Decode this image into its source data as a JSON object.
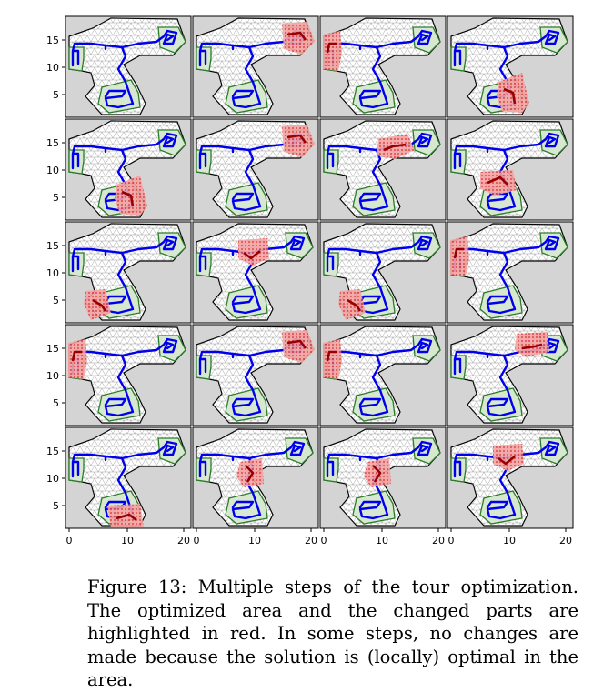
{
  "figure": {
    "grid": {
      "rows": 5,
      "cols": 4
    },
    "y_tick_labels": [
      "15",
      "10",
      "5"
    ],
    "x_tick_labels": [
      "0",
      "10",
      "20"
    ],
    "panels": [
      {
        "highlight": "none"
      },
      {
        "highlight": "top-right-component"
      },
      {
        "highlight": "left-component"
      },
      {
        "highlight": "bottom-component"
      },
      {
        "highlight": "bottom-component"
      },
      {
        "highlight": "top-right-component"
      },
      {
        "highlight": "upper-middle"
      },
      {
        "highlight": "bottom-middle"
      },
      {
        "highlight": "bottom-left"
      },
      {
        "highlight": "junction-upper"
      },
      {
        "highlight": "bottom-left"
      },
      {
        "highlight": "left-component"
      },
      {
        "highlight": "left-component"
      },
      {
        "highlight": "top-right-component"
      },
      {
        "highlight": "left-component"
      },
      {
        "highlight": "top-right-upper"
      },
      {
        "highlight": "bottom-right"
      },
      {
        "highlight": "middle-stem"
      },
      {
        "highlight": "middle-stem"
      },
      {
        "highlight": "junction-upper"
      }
    ]
  },
  "caption": {
    "text": "Figure 13: Multiple steps of the tour optimization. The optimized area and the changed parts are highlighted in red. In some steps, no changes are made because the solution is (locally) optimal in the area."
  },
  "colors": {
    "tour": "#0000ee",
    "component_border": "#2a7d2a",
    "highlight": "#f08a8a",
    "highlight_path": "#9a0000",
    "panel_background": "#d4d4d4"
  }
}
